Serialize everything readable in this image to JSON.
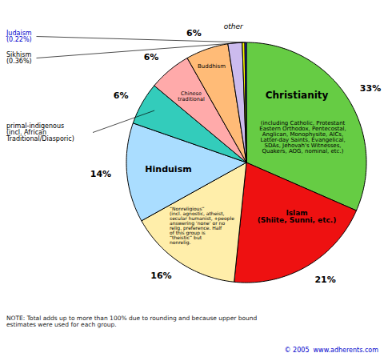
{
  "chart_data": {
    "type": "pie",
    "categories": [
      "Christianity",
      "Islam\n(Shiite, Sunni, etc.)",
      "“Nonreligious”\n(incl. agnostic, atheist,\nsecular humanist, +people\nanswering ‘none’ or no\nrelig. preference. Half\nof this group is\n“theistic” but\nnonrelig.",
      "Hinduism",
      "primal-indigenous\n(incl. African\nTraditional/Diasporic)",
      "Chinese\ntraditional",
      "Buddhism",
      "other",
      "Sikhism\n(0.36%)",
      "Judaism\n(0.22%)"
    ],
    "values": [
      33,
      21,
      16,
      14,
      6,
      6,
      6,
      2,
      0.36,
      0.22
    ],
    "value_labels": [
      "33%",
      "21%",
      "16%",
      "14%",
      "6%",
      "6%",
      "6%",
      null,
      null,
      null
    ],
    "colors": [
      "#66cc44",
      "#ee1111",
      "#ffeeaa",
      "#aaddff",
      "#33ccbb",
      "#ffaaaa",
      "#ffbb77",
      "#ccbbee",
      "#ffff00",
      "#3333ff"
    ],
    "data_labels": true,
    "tick_labels": false,
    "annotations": [
      "(including Catholic, Protestant\nEastern Orthodox, Pentecostal,\nAnglican, Monophysite, AICs,\nLatter-day Saints, Evangelical,\nSDAs, Jehovah's Witnesses,\nQuakers, AOG, nominal, etc.)",
      "NOTE: Total adds up to more than 100% due to rounding and because upper bound\nestimates were used for each group.",
      "© 2005  www.adherents.com"
    ]
  }
}
